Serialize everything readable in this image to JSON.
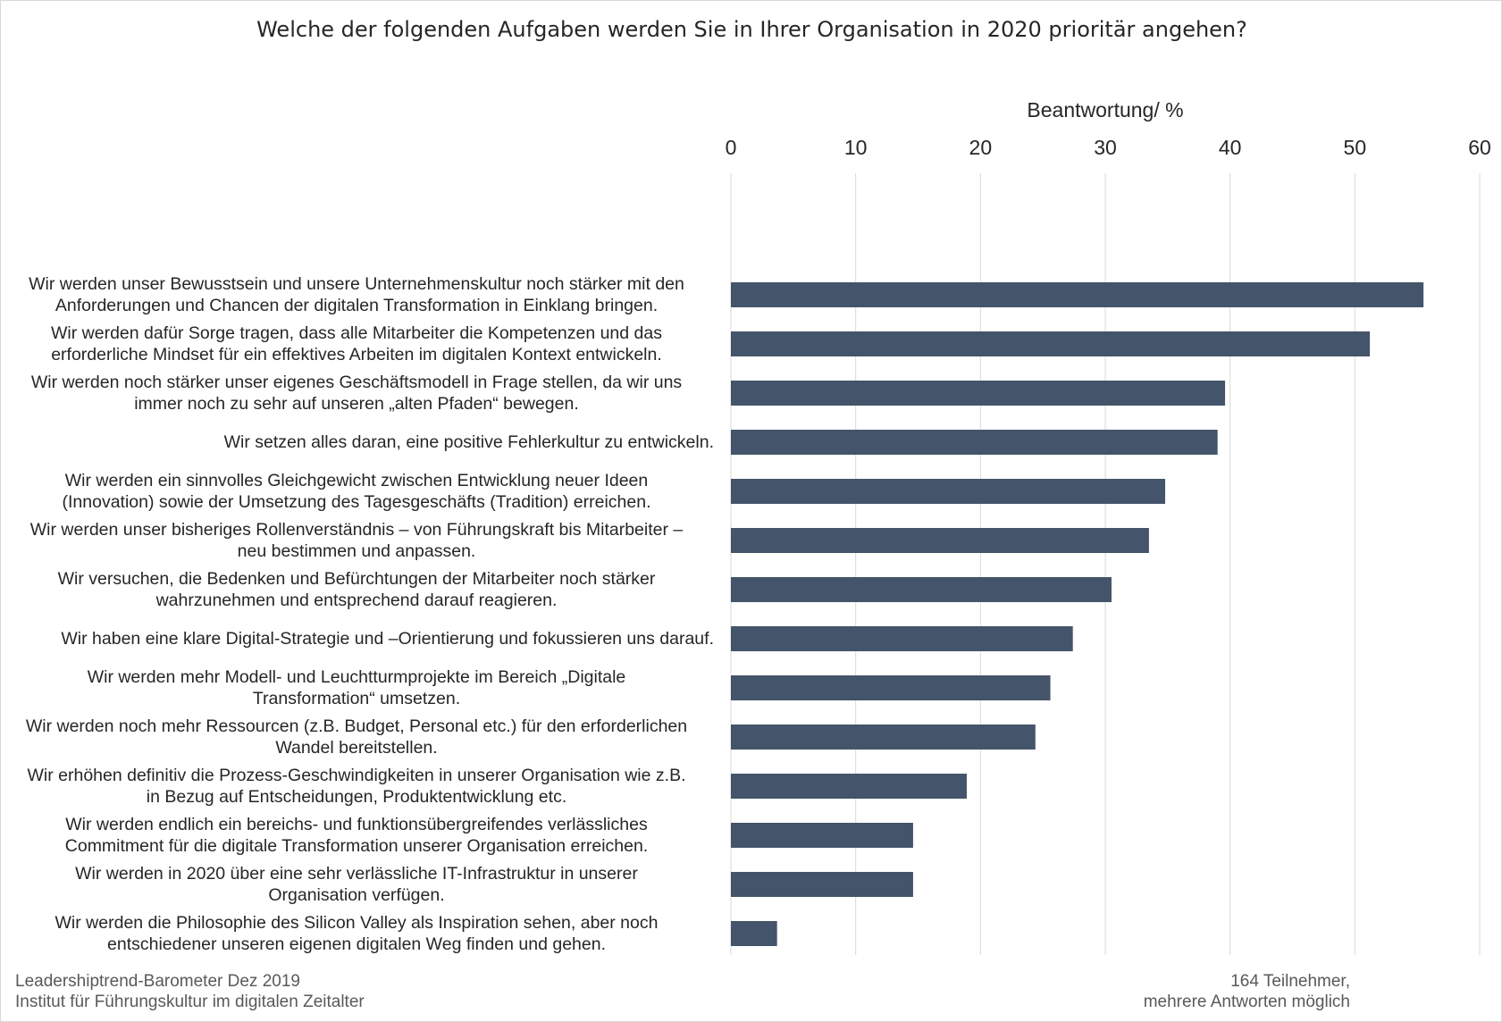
{
  "chart_data": {
    "type": "bar",
    "orientation": "horizontal",
    "title": "Welche der folgenden Aufgaben werden Sie in Ihrer Organisation in 2020 prioritär angehen?",
    "xlabel": "Beantwortung/ %",
    "ylabel": "",
    "xlim": [
      0,
      60
    ],
    "xticks": [
      "0",
      "10",
      "20",
      "30",
      "40",
      "50",
      "60"
    ],
    "axis_position": "top",
    "grid": true,
    "bar_color": "#44546a",
    "categories": [
      [
        "Wir werden unser Bewusstsein und unsere Unternehmenskultur noch stärker mit den",
        "Anforderungen und Chancen der digitalen Transformation in Einklang bringen."
      ],
      [
        "Wir werden dafür Sorge tragen, dass alle Mitarbeiter die Kompetenzen und das",
        "erforderliche Mindset für ein effektives Arbeiten im digitalen Kontext entwickeln."
      ],
      [
        "Wir werden noch stärker unser eigenes Geschäftsmodell in Frage stellen, da wir uns",
        "immer noch zu sehr auf unseren „alten Pfaden“ bewegen."
      ],
      [
        "Wir setzen alles daran, eine positive Fehlerkultur zu entwickeln."
      ],
      [
        "Wir werden ein sinnvolles Gleichgewicht zwischen Entwicklung neuer Ideen",
        "(Innovation) sowie der Umsetzung des Tagesgeschäfts (Tradition) erreichen."
      ],
      [
        "Wir werden unser bisheriges Rollenverständnis – von Führungskraft bis Mitarbeiter –",
        "neu bestimmen und anpassen."
      ],
      [
        "Wir versuchen, die Bedenken und Befürchtungen der Mitarbeiter noch stärker",
        "wahrzunehmen und entsprechend darauf reagieren."
      ],
      [
        "Wir haben eine klare Digital-Strategie und –Orientierung und fokussieren uns darauf."
      ],
      [
        "Wir werden mehr Modell- und Leuchtturmprojekte im Bereich „Digitale",
        "Transformation“ umsetzen."
      ],
      [
        "Wir werden noch mehr Ressourcen (z.B. Budget, Personal etc.) für den erforderlichen",
        "Wandel bereitstellen."
      ],
      [
        "Wir erhöhen definitiv die Prozess-Geschwindigkeiten in unserer Organisation wie z.B.",
        "in Bezug auf Entscheidungen, Produktentwicklung etc."
      ],
      [
        "Wir werden endlich ein bereichs- und funktionsübergreifendes verlässliches",
        "Commitment für die digitale Transformation unserer Organisation erreichen."
      ],
      [
        "Wir werden in 2020 über eine sehr verlässliche IT-Infrastruktur in unserer",
        "Organisation verfügen."
      ],
      [
        "Wir werden die Philosophie des Silicon Valley als Inspiration sehen, aber noch",
        "entschiedener unseren eigenen digitalen Weg finden und gehen."
      ]
    ],
    "values": [
      55.5,
      51.2,
      39.6,
      39.0,
      34.8,
      33.5,
      30.5,
      27.4,
      25.6,
      24.4,
      18.9,
      14.6,
      14.6,
      3.7
    ]
  },
  "footer": {
    "source_line1": "Leadershiptrend-Barometer Dez 2019",
    "source_line2": "Institut für Führungskultur  im digitalen Zeitalter",
    "note_line1": "164 Teilnehmer,",
    "note_line2": "mehrere Antworten möglich"
  }
}
